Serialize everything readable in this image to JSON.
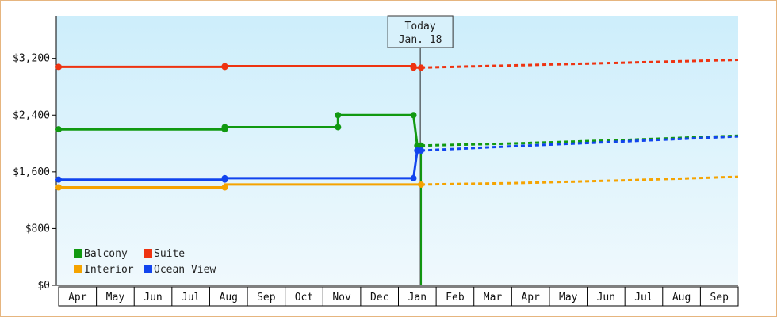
{
  "chart_data": {
    "type": "line",
    "title": "",
    "xlabel": "",
    "ylabel": "",
    "ylim": [
      0,
      3800
    ],
    "yticks": [
      {
        "value": 0,
        "label": "$0"
      },
      {
        "value": 800,
        "label": "$800"
      },
      {
        "value": 1600,
        "label": "$1,600"
      },
      {
        "value": 2400,
        "label": "$2,400"
      },
      {
        "value": 3200,
        "label": "$3,200"
      }
    ],
    "months": [
      "Apr",
      "May",
      "Jun",
      "Jul",
      "Aug",
      "Sep",
      "Oct",
      "Nov",
      "Dec",
      "Jan",
      "Feb",
      "Mar",
      "Apr",
      "May",
      "Jun",
      "Jul",
      "Aug",
      "Sep"
    ],
    "xlim": [
      0,
      18
    ],
    "today": {
      "line1": "Today",
      "line2": "Jan. 18",
      "x": 9.58
    },
    "grid": false,
    "legend_position": "bottom-left",
    "series": [
      {
        "name": "Balcony",
        "color": "#119911",
        "history": [
          [
            0,
            2200
          ],
          [
            4.4,
            2200
          ],
          [
            4.4,
            2230
          ],
          [
            7.4,
            2230
          ],
          [
            7.4,
            2400
          ],
          [
            9.4,
            2400
          ],
          [
            9.5,
            1970
          ],
          [
            9.6,
            1970
          ]
        ],
        "markers": [
          [
            0,
            2200
          ],
          [
            4.4,
            2200
          ],
          [
            4.4,
            2230
          ],
          [
            7.4,
            2230
          ],
          [
            7.4,
            2400
          ],
          [
            9.4,
            2400
          ],
          [
            9.5,
            1970
          ],
          [
            9.6,
            1970
          ]
        ],
        "drop_to_zero": true,
        "forecast": [
          [
            9.6,
            1970
          ],
          [
            12,
            2000
          ],
          [
            15,
            2050
          ],
          [
            18,
            2110
          ]
        ]
      },
      {
        "name": "Suite",
        "color": "#ee3311",
        "history": [
          [
            0,
            3080
          ],
          [
            4.4,
            3080
          ],
          [
            4.4,
            3090
          ],
          [
            9.4,
            3090
          ],
          [
            9.4,
            3070
          ],
          [
            9.6,
            3070
          ]
        ],
        "markers": [
          [
            0,
            3080
          ],
          [
            4.4,
            3080
          ],
          [
            4.4,
            3090
          ],
          [
            9.4,
            3090
          ],
          [
            9.4,
            3070
          ],
          [
            9.6,
            3070
          ]
        ],
        "forecast": [
          [
            9.6,
            3070
          ],
          [
            12,
            3100
          ],
          [
            15,
            3140
          ],
          [
            18,
            3180
          ]
        ]
      },
      {
        "name": "Interior",
        "color": "#f5a300",
        "history": [
          [
            0,
            1380
          ],
          [
            4.4,
            1380
          ],
          [
            4.4,
            1420
          ],
          [
            9.6,
            1420
          ]
        ],
        "markers": [
          [
            0,
            1380
          ],
          [
            4.4,
            1380
          ],
          [
            9.6,
            1420
          ]
        ],
        "forecast": [
          [
            9.6,
            1420
          ],
          [
            12,
            1440
          ],
          [
            15,
            1480
          ],
          [
            18,
            1530
          ]
        ]
      },
      {
        "name": "Ocean View",
        "color": "#1144ee",
        "history": [
          [
            0,
            1490
          ],
          [
            4.4,
            1490
          ],
          [
            4.4,
            1510
          ],
          [
            9.4,
            1510
          ],
          [
            9.5,
            1900
          ],
          [
            9.6,
            1900
          ]
        ],
        "markers": [
          [
            0,
            1490
          ],
          [
            4.4,
            1490
          ],
          [
            4.4,
            1510
          ],
          [
            9.4,
            1510
          ],
          [
            9.5,
            1900
          ],
          [
            9.6,
            1900
          ]
        ],
        "forecast": [
          [
            9.6,
            1900
          ],
          [
            12,
            1960
          ],
          [
            15,
            2030
          ],
          [
            18,
            2100
          ]
        ]
      }
    ],
    "legend_order": [
      "Balcony",
      "Suite",
      "Interior",
      "Ocean View"
    ]
  }
}
